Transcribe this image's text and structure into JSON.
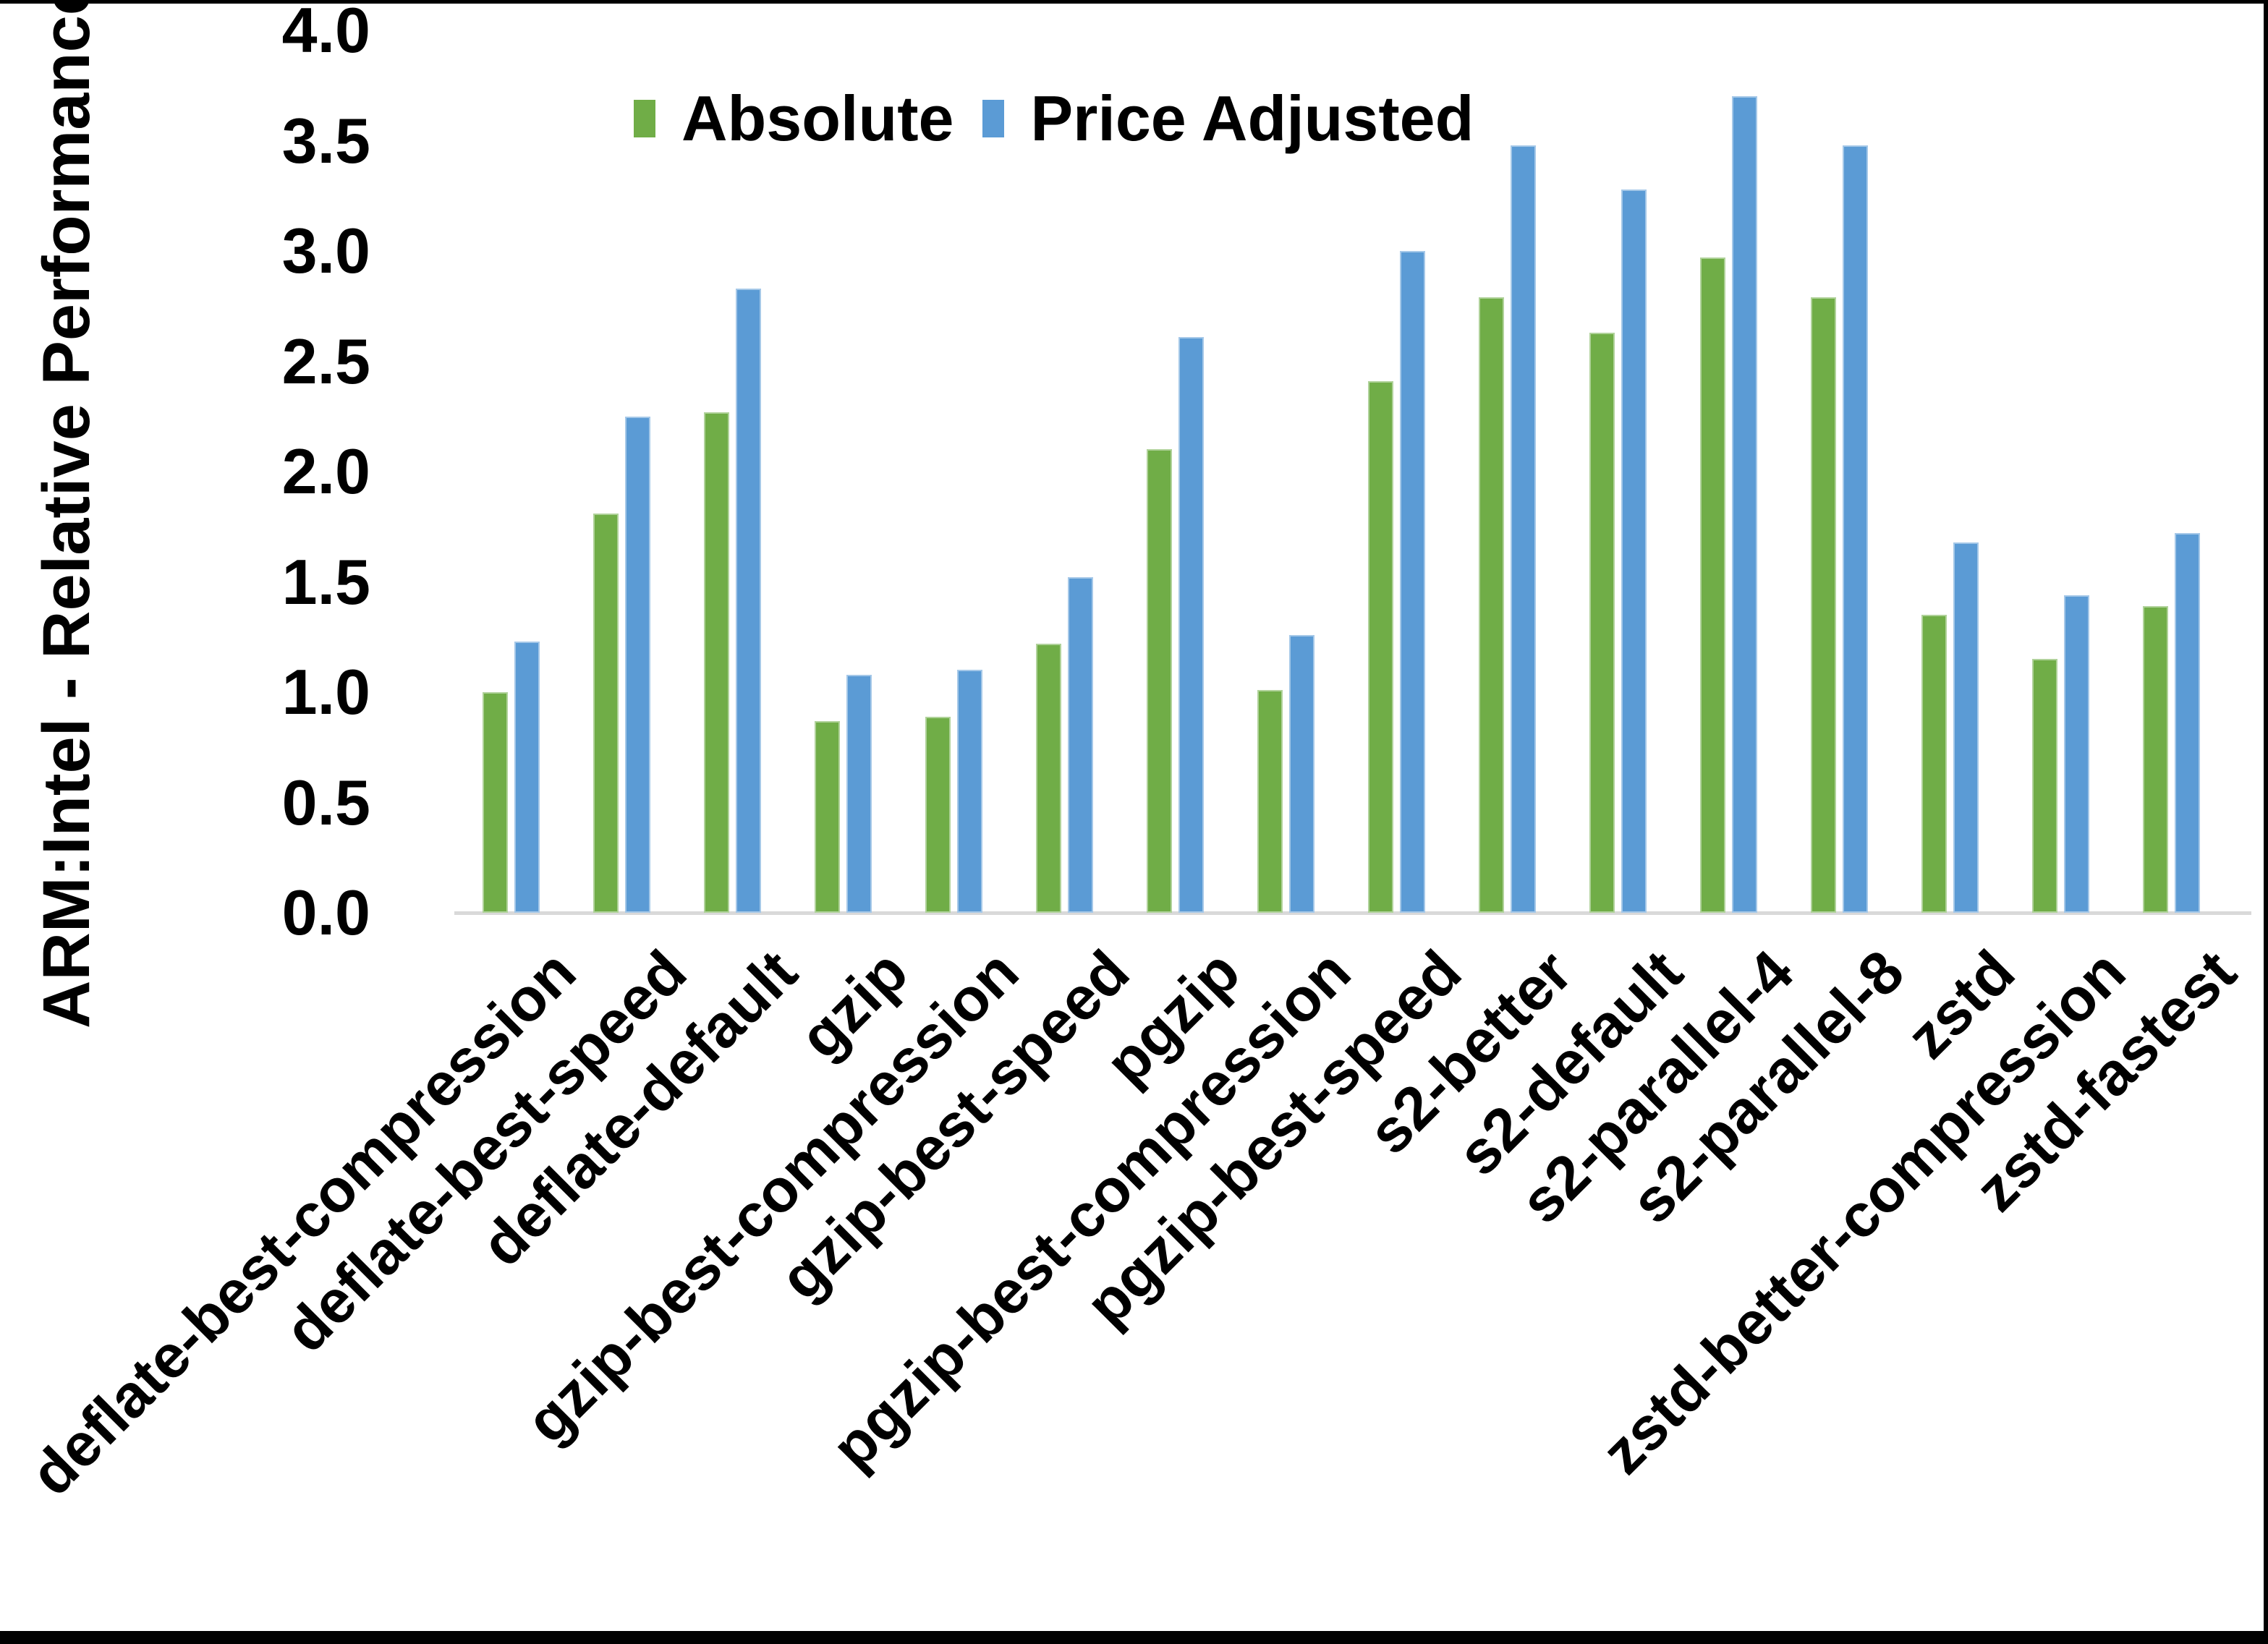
{
  "figure": {
    "background": "#ffffff",
    "border_color": "#000000",
    "baseline_color": "#d9d9d9"
  },
  "chart_data": {
    "type": "bar",
    "title": "",
    "xlabel": "",
    "ylabel": "ARM:Intel - Relative Performance",
    "ylim": [
      0.0,
      4.0
    ],
    "ytick_step": 0.5,
    "yticks": [
      "4.0",
      "3.5",
      "3.0",
      "2.5",
      "2.0",
      "1.5",
      "1.0",
      "0.5",
      "0.0"
    ],
    "grid": false,
    "legend_position": "top-center",
    "categories": [
      "deflate-best-compression",
      "deflate-best-speed",
      "deflate-default",
      "gzip",
      "gzip-best-compression",
      "gzip-best-speed",
      "pgzip",
      "pgzip-best-compression",
      "pgzip-best-speed",
      "s2-better",
      "s2-default",
      "s2-parallel-4",
      "s2-parallel-8",
      "zstd",
      "zstd-better-compression",
      "zstd-fastest"
    ],
    "series": [
      {
        "name": "Absolute",
        "color": "#70AD47",
        "values": [
          1.0,
          1.81,
          2.27,
          0.87,
          0.89,
          1.22,
          2.1,
          1.01,
          2.41,
          2.79,
          2.63,
          2.97,
          2.79,
          1.35,
          1.15,
          1.39
        ]
      },
      {
        "name": "Price Adjusted",
        "color": "#5B9BD5",
        "values": [
          1.23,
          2.25,
          2.83,
          1.08,
          1.1,
          1.52,
          2.61,
          1.26,
          3.0,
          3.48,
          3.28,
          3.7,
          3.48,
          1.68,
          1.44,
          1.72
        ]
      }
    ]
  }
}
